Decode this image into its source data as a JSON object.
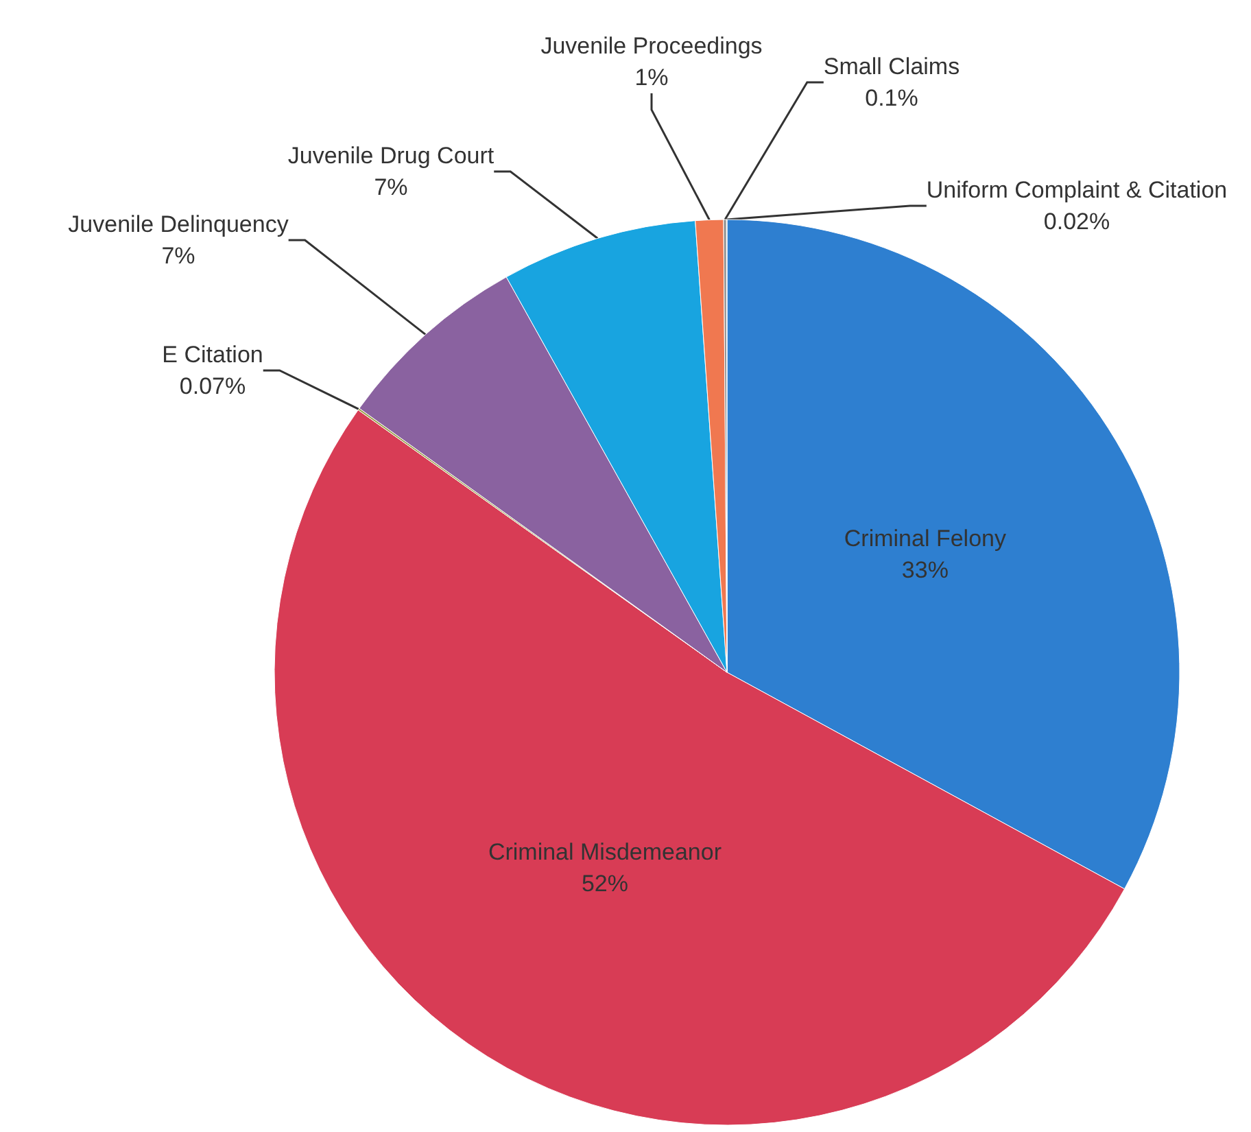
{
  "chart_data": {
    "type": "pie",
    "categories": [
      "Criminal Felony",
      "Criminal Misdemeanor",
      "E Citation",
      "Juvenile Delinquency",
      "Juvenile Drug Court",
      "Juvenile Proceedings",
      "Small Claims",
      "Uniform Complaint & Citation"
    ],
    "values": [
      33,
      52,
      0.07,
      7,
      7,
      1,
      0.1,
      0.02
    ],
    "value_labels": [
      "33%",
      "52%",
      "0.07%",
      "7%",
      "7%",
      "1%",
      "0.1%",
      "0.02%"
    ],
    "colors": [
      "#2e7fd0",
      "#d83c55",
      "#9aa04a",
      "#8a62a0",
      "#18a4e0",
      "#f07850",
      "#8a8a8a",
      "#c8b070"
    ],
    "legend": false
  }
}
